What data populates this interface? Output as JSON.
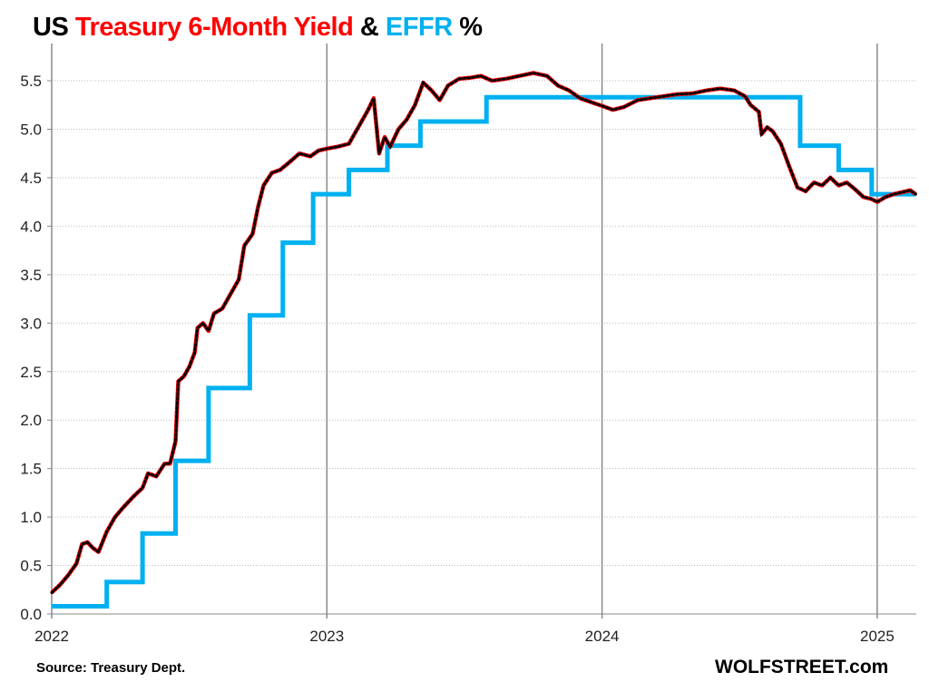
{
  "chart_data": {
    "type": "line",
    "title": {
      "part1": "US",
      "part2": "Treasury 6-Month Yield",
      "part3": "&",
      "part4": "EFFR",
      "part5": "%"
    },
    "xlabel": "",
    "ylabel": "%",
    "xlim": [
      2022.0,
      2025.14
    ],
    "ylim": [
      0,
      5.75
    ],
    "yticks": [
      "0.0",
      "0.5",
      "1.0",
      "1.5",
      "2.0",
      "2.5",
      "3.0",
      "3.5",
      "4.0",
      "4.5",
      "5.0",
      "5.5"
    ],
    "xticks": [
      {
        "label": "2022",
        "value": 2022
      },
      {
        "label": "2023",
        "value": 2023
      },
      {
        "label": "2024",
        "value": 2024
      },
      {
        "label": "2025",
        "value": 2025
      }
    ],
    "grid": "horizontal dotted, vertical at year boundaries",
    "series": [
      {
        "name": "US Treasury 6-Month Yield",
        "color": "#ff0000",
        "dots": "#000000",
        "points": [
          [
            2022.0,
            0.22
          ],
          [
            2022.03,
            0.3
          ],
          [
            2022.06,
            0.4
          ],
          [
            2022.09,
            0.52
          ],
          [
            2022.11,
            0.72
          ],
          [
            2022.13,
            0.74
          ],
          [
            2022.15,
            0.68
          ],
          [
            2022.17,
            0.64
          ],
          [
            2022.2,
            0.85
          ],
          [
            2022.23,
            1.0
          ],
          [
            2022.26,
            1.1
          ],
          [
            2022.3,
            1.22
          ],
          [
            2022.33,
            1.3
          ],
          [
            2022.35,
            1.45
          ],
          [
            2022.38,
            1.42
          ],
          [
            2022.41,
            1.55
          ],
          [
            2022.43,
            1.55
          ],
          [
            2022.45,
            1.78
          ],
          [
            2022.46,
            2.4
          ],
          [
            2022.48,
            2.45
          ],
          [
            2022.5,
            2.55
          ],
          [
            2022.52,
            2.7
          ],
          [
            2022.53,
            2.95
          ],
          [
            2022.55,
            3.0
          ],
          [
            2022.57,
            2.92
          ],
          [
            2022.59,
            3.1
          ],
          [
            2022.62,
            3.15
          ],
          [
            2022.65,
            3.3
          ],
          [
            2022.68,
            3.45
          ],
          [
            2022.7,
            3.8
          ],
          [
            2022.73,
            3.92
          ],
          [
            2022.75,
            4.2
          ],
          [
            2022.77,
            4.42
          ],
          [
            2022.8,
            4.55
          ],
          [
            2022.83,
            4.58
          ],
          [
            2022.86,
            4.65
          ],
          [
            2022.9,
            4.75
          ],
          [
            2022.94,
            4.72
          ],
          [
            2022.97,
            4.78
          ],
          [
            2023.0,
            4.8
          ],
          [
            2023.04,
            4.82
          ],
          [
            2023.08,
            4.85
          ],
          [
            2023.12,
            5.05
          ],
          [
            2023.15,
            5.2
          ],
          [
            2023.17,
            5.32
          ],
          [
            2023.19,
            4.75
          ],
          [
            2023.21,
            4.92
          ],
          [
            2023.23,
            4.82
          ],
          [
            2023.26,
            5.0
          ],
          [
            2023.29,
            5.1
          ],
          [
            2023.32,
            5.25
          ],
          [
            2023.35,
            5.48
          ],
          [
            2023.38,
            5.4
          ],
          [
            2023.41,
            5.3
          ],
          [
            2023.44,
            5.45
          ],
          [
            2023.48,
            5.52
          ],
          [
            2023.52,
            5.53
          ],
          [
            2023.56,
            5.55
          ],
          [
            2023.6,
            5.5
          ],
          [
            2023.65,
            5.52
          ],
          [
            2023.7,
            5.55
          ],
          [
            2023.75,
            5.58
          ],
          [
            2023.8,
            5.55
          ],
          [
            2023.84,
            5.45
          ],
          [
            2023.88,
            5.4
          ],
          [
            2023.92,
            5.32
          ],
          [
            2023.96,
            5.28
          ],
          [
            2024.0,
            5.24
          ],
          [
            2024.04,
            5.2
          ],
          [
            2024.08,
            5.23
          ],
          [
            2024.13,
            5.3
          ],
          [
            2024.2,
            5.33
          ],
          [
            2024.27,
            5.36
          ],
          [
            2024.33,
            5.37
          ],
          [
            2024.38,
            5.4
          ],
          [
            2024.43,
            5.42
          ],
          [
            2024.48,
            5.4
          ],
          [
            2024.52,
            5.34
          ],
          [
            2024.54,
            5.25
          ],
          [
            2024.57,
            5.18
          ],
          [
            2024.58,
            4.95
          ],
          [
            2024.6,
            5.02
          ],
          [
            2024.62,
            4.98
          ],
          [
            2024.65,
            4.85
          ],
          [
            2024.68,
            4.62
          ],
          [
            2024.71,
            4.4
          ],
          [
            2024.74,
            4.36
          ],
          [
            2024.77,
            4.45
          ],
          [
            2024.8,
            4.42
          ],
          [
            2024.83,
            4.5
          ],
          [
            2024.86,
            4.42
          ],
          [
            2024.89,
            4.45
          ],
          [
            2024.92,
            4.38
          ],
          [
            2024.95,
            4.3
          ],
          [
            2024.98,
            4.28
          ],
          [
            2025.0,
            4.25
          ],
          [
            2025.03,
            4.3
          ],
          [
            2025.06,
            4.33
          ],
          [
            2025.09,
            4.35
          ],
          [
            2025.12,
            4.37
          ],
          [
            2025.14,
            4.33
          ]
        ]
      },
      {
        "name": "EFFR",
        "color": "#00b0f0",
        "steps": [
          [
            2022.0,
            0.08
          ],
          [
            2022.2,
            0.33
          ],
          [
            2022.33,
            0.83
          ],
          [
            2022.45,
            1.58
          ],
          [
            2022.57,
            2.33
          ],
          [
            2022.72,
            3.08
          ],
          [
            2022.84,
            3.83
          ],
          [
            2022.95,
            4.33
          ],
          [
            2023.08,
            4.58
          ],
          [
            2023.22,
            4.83
          ],
          [
            2023.34,
            5.08
          ],
          [
            2023.58,
            5.33
          ],
          [
            2024.72,
            4.83
          ],
          [
            2024.86,
            4.58
          ],
          [
            2024.98,
            4.33
          ],
          [
            2025.14,
            4.33
          ]
        ]
      }
    ],
    "source": "Source: Treasury Dept.",
    "brand": "WOLFSTREET.com"
  }
}
